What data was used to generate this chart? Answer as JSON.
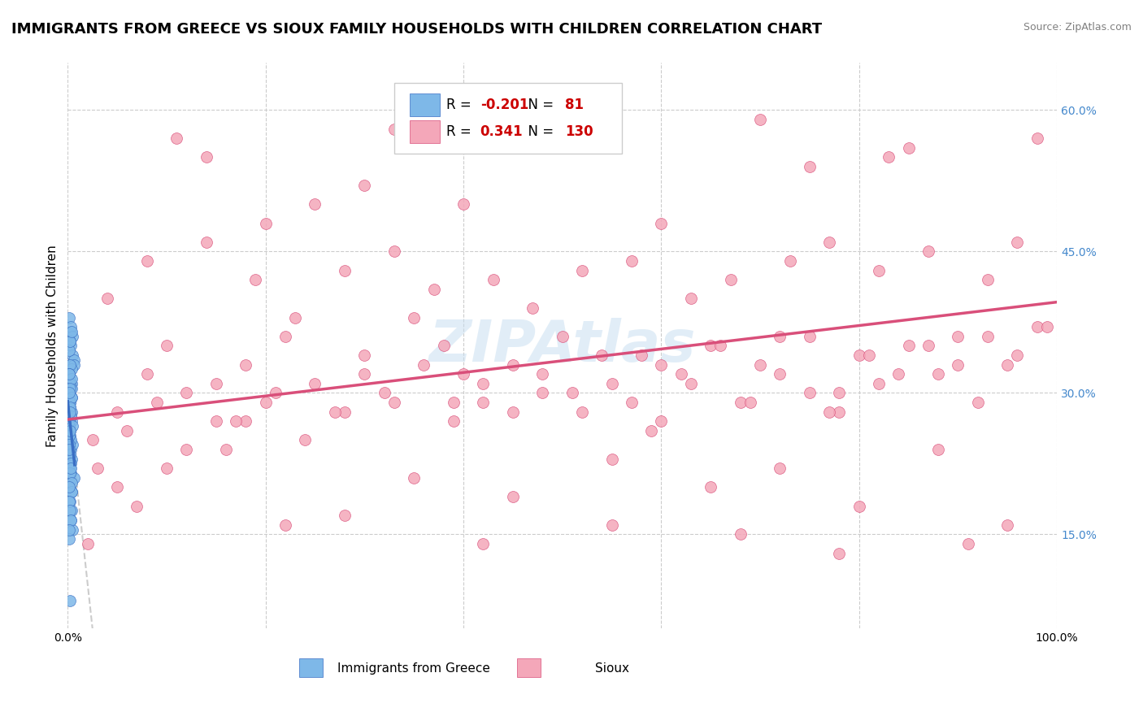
{
  "title": "IMMIGRANTS FROM GREECE VS SIOUX FAMILY HOUSEHOLDS WITH CHILDREN CORRELATION CHART",
  "source_text": "Source: ZipAtlas.com",
  "xlabel": "",
  "ylabel": "Family Households with Children",
  "xlim": [
    0.0,
    100.0
  ],
  "ylim": [
    5.0,
    65.0
  ],
  "yticks": [
    15.0,
    30.0,
    45.0,
    60.0
  ],
  "xticks": [
    0.0,
    20.0,
    40.0,
    60.0,
    80.0,
    100.0
  ],
  "xtick_labels": [
    "0.0%",
    "",
    "",
    "",
    "",
    "100.0%"
  ],
  "ytick_labels": [
    "15.0%",
    "30.0%",
    "45.0%",
    "60.0%"
  ],
  "legend_r1": "R = -0.201",
  "legend_n1": "N =  81",
  "legend_r2": "R =  0.341",
  "legend_n2": "N = 130",
  "color_blue": "#7eb8e8",
  "color_pink": "#f4a7b9",
  "color_line_blue": "#3a6fc4",
  "color_line_pink": "#d94f7a",
  "color_line_dashed": "#aaaaaa",
  "color_ytick_label": "#4488cc",
  "background_color": "#ffffff",
  "grid_color": "#cccccc",
  "watermark_color": "#c5ddf0",
  "watermark_text": "ZIPAtlas",
  "title_fontsize": 13,
  "axis_label_fontsize": 11,
  "tick_fontsize": 10,
  "blue_points_x": [
    0.3,
    0.2,
    0.1,
    0.15,
    0.4,
    0.25,
    0.3,
    0.1,
    0.2,
    0.35,
    0.5,
    0.6,
    0.4,
    0.2,
    0.15,
    0.25,
    0.3,
    0.1,
    0.2,
    0.4,
    0.15,
    0.3,
    0.5,
    0.2,
    0.1,
    0.6,
    0.35,
    0.25,
    0.15,
    0.4,
    0.2,
    0.3,
    0.1,
    0.25,
    0.45,
    0.2,
    0.15,
    0.3,
    0.1,
    0.35,
    0.2,
    0.4,
    0.3,
    0.5,
    0.1,
    0.25,
    0.2,
    0.15,
    0.3,
    0.4,
    0.6,
    0.2,
    0.15,
    0.1,
    0.35,
    0.25,
    0.4,
    0.2,
    0.3,
    0.5,
    0.15,
    0.1,
    0.25,
    0.3,
    0.2,
    0.35,
    0.4,
    0.15,
    0.2,
    0.3,
    0.1,
    0.25,
    0.2,
    0.35,
    0.15,
    0.1,
    0.2,
    0.25,
    0.15,
    0.3,
    0.1
  ],
  "blue_points_y": [
    36.5,
    33.0,
    30.0,
    28.5,
    27.0,
    26.0,
    35.0,
    32.0,
    29.0,
    31.0,
    34.0,
    33.5,
    28.0,
    27.5,
    26.5,
    25.0,
    24.0,
    23.0,
    22.0,
    30.5,
    38.0,
    37.0,
    36.0,
    35.5,
    34.5,
    33.0,
    32.5,
    31.5,
    30.5,
    29.5,
    28.5,
    27.5,
    26.5,
    25.5,
    24.5,
    23.5,
    22.5,
    21.5,
    20.5,
    19.5,
    18.5,
    17.5,
    16.5,
    15.5,
    14.5,
    31.0,
    29.0,
    27.0,
    25.0,
    23.0,
    21.0,
    33.0,
    28.0,
    32.0,
    31.5,
    30.5,
    29.5,
    28.5,
    27.5,
    26.5,
    25.5,
    24.5,
    23.5,
    22.5,
    21.5,
    20.5,
    19.5,
    18.5,
    17.5,
    16.5,
    15.5,
    8.0,
    35.5,
    36.5,
    32.0,
    30.0,
    28.0,
    26.0,
    24.0,
    22.0,
    20.0
  ],
  "pink_points_x": [
    2.5,
    5.0,
    8.0,
    10.0,
    12.0,
    15.0,
    18.0,
    20.0,
    22.0,
    25.0,
    28.0,
    30.0,
    32.0,
    35.0,
    38.0,
    40.0,
    42.0,
    45.0,
    48.0,
    50.0,
    52.0,
    55.0,
    58.0,
    60.0,
    62.0,
    65.0,
    68.0,
    70.0,
    72.0,
    75.0,
    78.0,
    80.0,
    82.0,
    85.0,
    88.0,
    90.0,
    92.0,
    95.0,
    98.0,
    3.0,
    6.0,
    9.0,
    12.0,
    15.0,
    18.0,
    21.0,
    24.0,
    27.0,
    30.0,
    33.0,
    36.0,
    39.0,
    42.0,
    45.0,
    48.0,
    51.0,
    54.0,
    57.0,
    60.0,
    63.0,
    66.0,
    69.0,
    72.0,
    75.0,
    78.0,
    81.0,
    84.0,
    87.0,
    90.0,
    93.0,
    96.0,
    99.0,
    4.0,
    8.0,
    14.0,
    19.0,
    23.0,
    28.0,
    33.0,
    37.0,
    43.0,
    47.0,
    52.0,
    57.0,
    63.0,
    67.0,
    73.0,
    77.0,
    82.0,
    87.0,
    93.0,
    96.0,
    20.0,
    25.0,
    14.0,
    30.0,
    40.0,
    60.0,
    75.0,
    85.0,
    5.0,
    7.0,
    10.0,
    16.0,
    28.0,
    35.0,
    45.0,
    55.0,
    65.0,
    72.0,
    80.0,
    88.0,
    95.0,
    2.0,
    22.0,
    42.0,
    55.0,
    68.0,
    78.0,
    91.0,
    11.0,
    33.0,
    53.0,
    70.0,
    83.0,
    98.0,
    17.0,
    39.0,
    59.0,
    77.0
  ],
  "pink_points_y": [
    25.0,
    28.0,
    32.0,
    35.0,
    30.0,
    27.0,
    33.0,
    29.0,
    36.0,
    31.0,
    28.0,
    34.0,
    30.0,
    38.0,
    35.0,
    32.0,
    29.0,
    33.0,
    30.0,
    36.0,
    28.0,
    31.0,
    34.0,
    27.0,
    32.0,
    35.0,
    29.0,
    33.0,
    36.0,
    30.0,
    28.0,
    34.0,
    31.0,
    35.0,
    32.0,
    36.0,
    29.0,
    33.0,
    37.0,
    22.0,
    26.0,
    29.0,
    24.0,
    31.0,
    27.0,
    30.0,
    25.0,
    28.0,
    32.0,
    29.0,
    33.0,
    27.0,
    31.0,
    28.0,
    32.0,
    30.0,
    34.0,
    29.0,
    33.0,
    31.0,
    35.0,
    29.0,
    32.0,
    36.0,
    30.0,
    34.0,
    32.0,
    35.0,
    33.0,
    36.0,
    34.0,
    37.0,
    40.0,
    44.0,
    46.0,
    42.0,
    38.0,
    43.0,
    45.0,
    41.0,
    42.0,
    39.0,
    43.0,
    44.0,
    40.0,
    42.0,
    44.0,
    46.0,
    43.0,
    45.0,
    42.0,
    46.0,
    48.0,
    50.0,
    55.0,
    52.0,
    50.0,
    48.0,
    54.0,
    56.0,
    20.0,
    18.0,
    22.0,
    24.0,
    17.0,
    21.0,
    19.0,
    23.0,
    20.0,
    22.0,
    18.0,
    24.0,
    16.0,
    14.0,
    16.0,
    14.0,
    16.0,
    15.0,
    13.0,
    14.0,
    57.0,
    58.0,
    56.0,
    59.0,
    55.0,
    57.0,
    27.0,
    29.0,
    26.0,
    28.0
  ]
}
